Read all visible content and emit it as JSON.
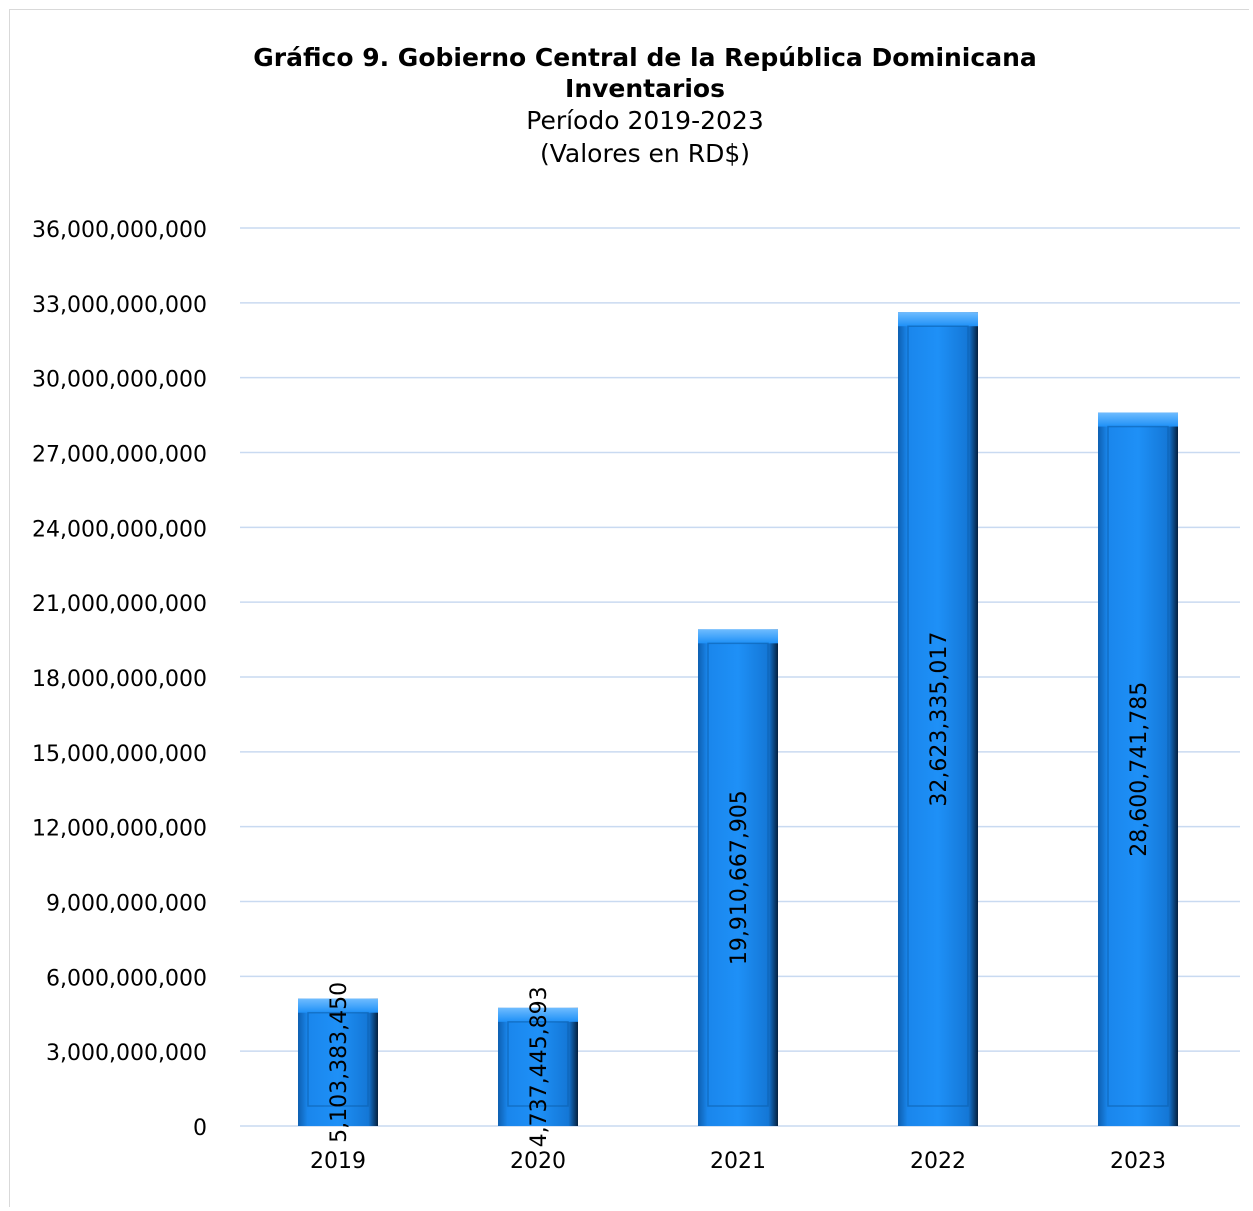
{
  "chart_data": {
    "type": "bar",
    "title_line1": "Gráfico 9. Gobierno Central  de la República Dominicana",
    "title_line2": "Inventarios",
    "subtitle_line1": "Período 2019-2023",
    "subtitle_line2": "(Valores en RD$)",
    "categories": [
      "2019",
      "2020",
      "2021",
      "2022",
      "2023"
    ],
    "values": [
      5103383450,
      4737445893,
      19910667905,
      32623335017,
      28600741785
    ],
    "value_labels": [
      "5,103,383,450",
      "4,737,445,893",
      "19,910,667,905",
      "32,623,335,017",
      "28,600,741,785"
    ],
    "y_tick_labels": [
      "0",
      "3,000,000,000",
      "6,000,000,000",
      "9,000,000,000",
      "12,000,000,000",
      "15,000,000,000",
      "18,000,000,000",
      "21,000,000,000",
      "24,000,000,000",
      "27,000,000,000",
      "30,000,000,000",
      "33,000,000,000",
      "36,000,000,000"
    ],
    "ylim": [
      0,
      36000000000
    ],
    "grid": true,
    "bar_color": "#1e90f5",
    "gridline_color": "#c9daf1"
  }
}
